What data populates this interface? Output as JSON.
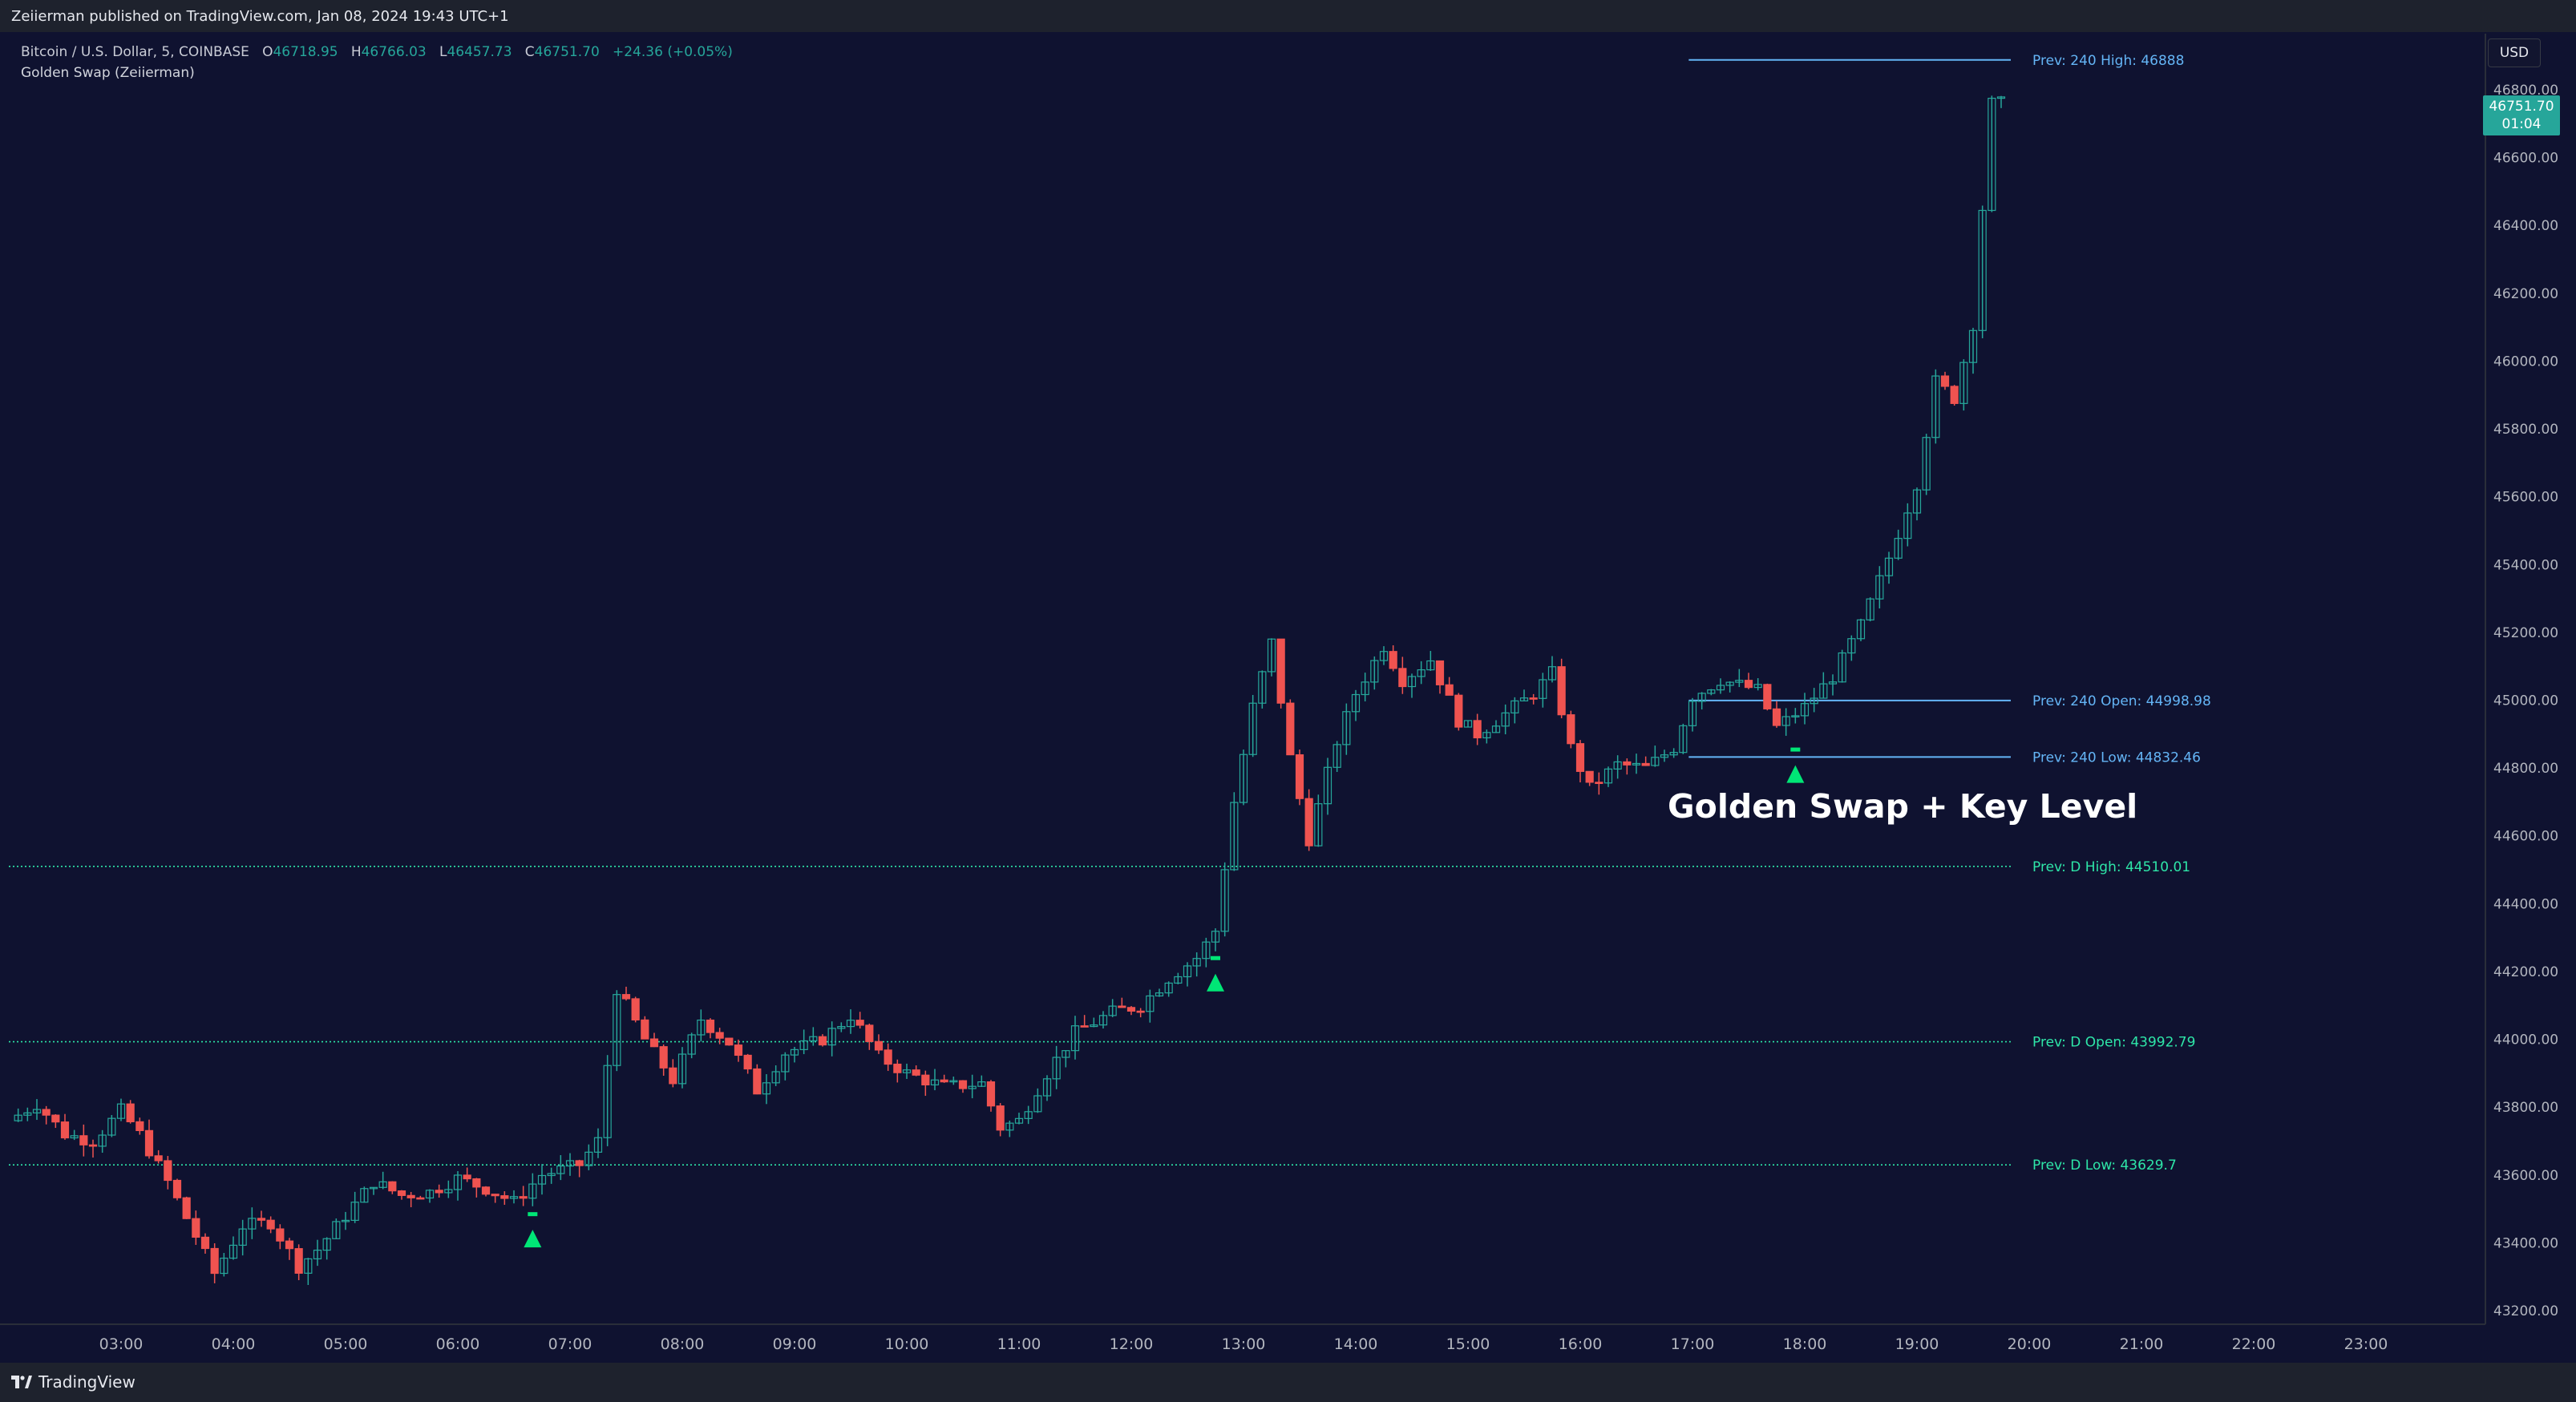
{
  "publisher_line": "Zeiierman published on TradingView.com, Jan 08, 2024 19:43 UTC+1",
  "legend": {
    "symbol": "Bitcoin / U.S. Dollar, 5, COINBASE",
    "o_label": "O",
    "o_value": "46718.95",
    "h_label": "H",
    "h_value": "46766.03",
    "l_label": "L",
    "l_value": "46457.73",
    "c_label": "C",
    "c_value": "46751.70",
    "change": "+24.36 (+0.05%)",
    "indicator": "Golden Swap (Zeiierman)"
  },
  "currency_button": "USD",
  "last_price": {
    "price": "46751.70",
    "countdown": "01:04"
  },
  "annotation": "Golden Swap + Key Level",
  "footer_brand": "TradingView",
  "colors": {
    "background": "#0f1230",
    "up": "#26a69a",
    "down": "#ef5350",
    "signal": "#00e676",
    "level_240": "#64b5f6",
    "level_daily": "#2ee6a8"
  },
  "chart_data": {
    "type": "candlestick",
    "y_ticks": [
      "46800.00",
      "46600.00",
      "46400.00",
      "46200.00",
      "46000.00",
      "45800.00",
      "45600.00",
      "45400.00",
      "45200.00",
      "45000.00",
      "44800.00",
      "44600.00",
      "44400.00",
      "44200.00",
      "44000.00",
      "43800.00",
      "43600.00",
      "43400.00",
      "43200.00"
    ],
    "x_ticks": [
      "03:00",
      "04:00",
      "05:00",
      "06:00",
      "07:00",
      "08:00",
      "09:00",
      "10:00",
      "11:00",
      "12:00",
      "13:00",
      "14:00",
      "15:00",
      "16:00",
      "17:00",
      "18:00",
      "19:00",
      "20:00",
      "21:00",
      "22:00",
      "23:00"
    ],
    "levels": [
      {
        "label": "Prev: 240 High: 46888",
        "value": 46888,
        "kind": "240",
        "start_time": "16:58"
      },
      {
        "label": "Prev: 240 Open: 44998.98",
        "value": 44998.98,
        "kind": "240",
        "start_time": "16:58"
      },
      {
        "label": "Prev: 240 Low: 44832.46",
        "value": 44832.46,
        "kind": "240",
        "start_time": "16:58"
      },
      {
        "label": "Prev: D High: 44510.01",
        "value": 44510.01,
        "kind": "daily",
        "start_time": "02:00"
      },
      {
        "label": "Prev: D Open: 43992.79",
        "value": 43992.79,
        "kind": "daily",
        "start_time": "02:00"
      },
      {
        "label": "Prev: D Low: 43629.7",
        "value": 43629.7,
        "kind": "daily",
        "start_time": "02:00"
      }
    ],
    "signals": [
      {
        "time": "06:40",
        "price": 43410
      },
      {
        "time": "12:45",
        "price": 44165
      },
      {
        "time": "17:55",
        "price": 44780
      }
    ],
    "path": [
      [
        "02:05",
        43760
      ],
      [
        "02:20",
        43810
      ],
      [
        "02:35",
        43720
      ],
      [
        "02:50",
        43700
      ],
      [
        "03:05",
        43790
      ],
      [
        "03:15",
        43720
      ],
      [
        "03:30",
        43580
      ],
      [
        "03:45",
        43420
      ],
      [
        "03:55",
        43310
      ],
      [
        "04:10",
        43450
      ],
      [
        "04:25",
        43460
      ],
      [
        "04:40",
        43330
      ],
      [
        "04:50",
        43380
      ],
      [
        "05:05",
        43480
      ],
      [
        "05:20",
        43580
      ],
      [
        "05:35",
        43540
      ],
      [
        "05:50",
        43550
      ],
      [
        "06:05",
        43590
      ],
      [
        "06:20",
        43560
      ],
      [
        "06:35",
        43520
      ],
      [
        "06:50",
        43600
      ],
      [
        "07:10",
        43630
      ],
      [
        "07:20",
        43700
      ],
      [
        "07:30",
        44150
      ],
      [
        "07:45",
        44000
      ],
      [
        "08:00",
        43880
      ],
      [
        "08:15",
        44060
      ],
      [
        "08:30",
        43990
      ],
      [
        "08:45",
        43850
      ],
      [
        "09:00",
        43960
      ],
      [
        "09:20",
        44000
      ],
      [
        "09:35",
        44070
      ],
      [
        "09:50",
        43950
      ],
      [
        "10:05",
        43900
      ],
      [
        "10:25",
        43860
      ],
      [
        "10:45",
        43870
      ],
      [
        "10:55",
        43740
      ],
      [
        "11:05",
        43760
      ],
      [
        "11:20",
        43900
      ],
      [
        "11:35",
        44020
      ],
      [
        "11:55",
        44080
      ],
      [
        "12:10",
        44100
      ],
      [
        "12:25",
        44180
      ],
      [
        "12:40",
        44240
      ],
      [
        "12:50",
        44320
      ],
      [
        "13:00",
        44700
      ],
      [
        "13:10",
        44980
      ],
      [
        "13:20",
        45170
      ],
      [
        "13:30",
        44830
      ],
      [
        "13:40",
        44590
      ],
      [
        "13:55",
        44880
      ],
      [
        "14:05",
        45020
      ],
      [
        "14:20",
        45160
      ],
      [
        "14:30",
        45060
      ],
      [
        "14:45",
        45120
      ],
      [
        "15:00",
        44940
      ],
      [
        "15:10",
        44900
      ],
      [
        "15:25",
        44960
      ],
      [
        "15:40",
        45020
      ],
      [
        "15:50",
        45080
      ],
      [
        "16:00",
        44860
      ],
      [
        "16:10",
        44740
      ],
      [
        "16:25",
        44810
      ],
      [
        "16:40",
        44800
      ],
      [
        "16:55",
        44860
      ],
      [
        "17:05",
        45010
      ],
      [
        "17:20",
        45060
      ],
      [
        "17:40",
        45030
      ],
      [
        "17:50",
        44920
      ],
      [
        "18:05",
        44980
      ],
      [
        "18:20",
        45070
      ],
      [
        "18:35",
        45220
      ],
      [
        "18:50",
        45420
      ],
      [
        "19:05",
        45640
      ],
      [
        "19:15",
        45940
      ],
      [
        "19:25",
        45890
      ],
      [
        "19:35",
        46110
      ],
      [
        "19:40",
        46450
      ],
      [
        "19:45",
        46760
      ]
    ]
  }
}
